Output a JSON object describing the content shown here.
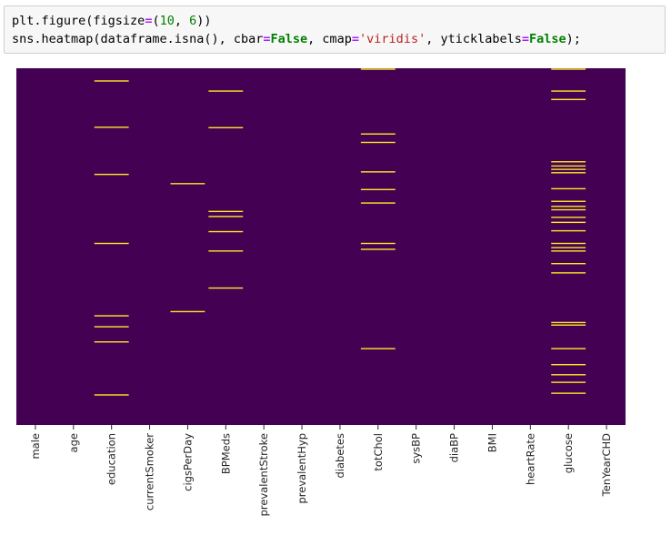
{
  "code": {
    "line1": [
      "plt.figure(figsize",
      "=",
      "(",
      "10",
      ", ",
      "6",
      "))"
    ],
    "line2": [
      "sns.heatmap(dataframe.isna(), cbar",
      "=",
      "False",
      ", cmap",
      "=",
      "'viridis'",
      ", yticklabels",
      "=",
      "False",
      ");"
    ]
  },
  "chart_data": {
    "type": "heatmap",
    "title": "",
    "xlabel": "",
    "ylabel": "",
    "yticklabels": false,
    "colorbar": false,
    "colors": {
      "present": "#440154",
      "missing": "#fde725"
    },
    "n_rows": 4238,
    "categories": [
      "male",
      "age",
      "education",
      "currentSmoker",
      "cigsPerDay",
      "BPMeds",
      "prevalentStroke",
      "prevalentHyp",
      "diabetes",
      "totChol",
      "sysBP",
      "diaBP",
      "BMI",
      "heartRate",
      "glucose",
      "TenYearCHD"
    ],
    "missing_rows": {
      "male": [],
      "age": [],
      "education": [
        150,
        700,
        1260,
        2080,
        2940,
        3070,
        3250,
        3880
      ],
      "currentSmoker": [],
      "cigsPerDay": [
        1370,
        2890
      ],
      "BPMeds": [
        270,
        705,
        1700,
        1760,
        1940,
        2170,
        2610
      ],
      "prevalentStroke": [],
      "prevalentHyp": [],
      "diabetes": [],
      "totChol": [
        10,
        780,
        880,
        1230,
        1440,
        1600,
        2080,
        2150,
        3330
      ],
      "sysBP": [],
      "diaBP": [],
      "BMI": [],
      "heartRate": [],
      "glucose": [
        10,
        270,
        370,
        1110,
        1160,
        1200,
        1240,
        1430,
        1580,
        1640,
        1680,
        1770,
        1830,
        1930,
        2080,
        2130,
        2170,
        2320,
        2430,
        3020,
        3050,
        3330,
        3520,
        3640,
        3730,
        3860
      ]
    }
  }
}
